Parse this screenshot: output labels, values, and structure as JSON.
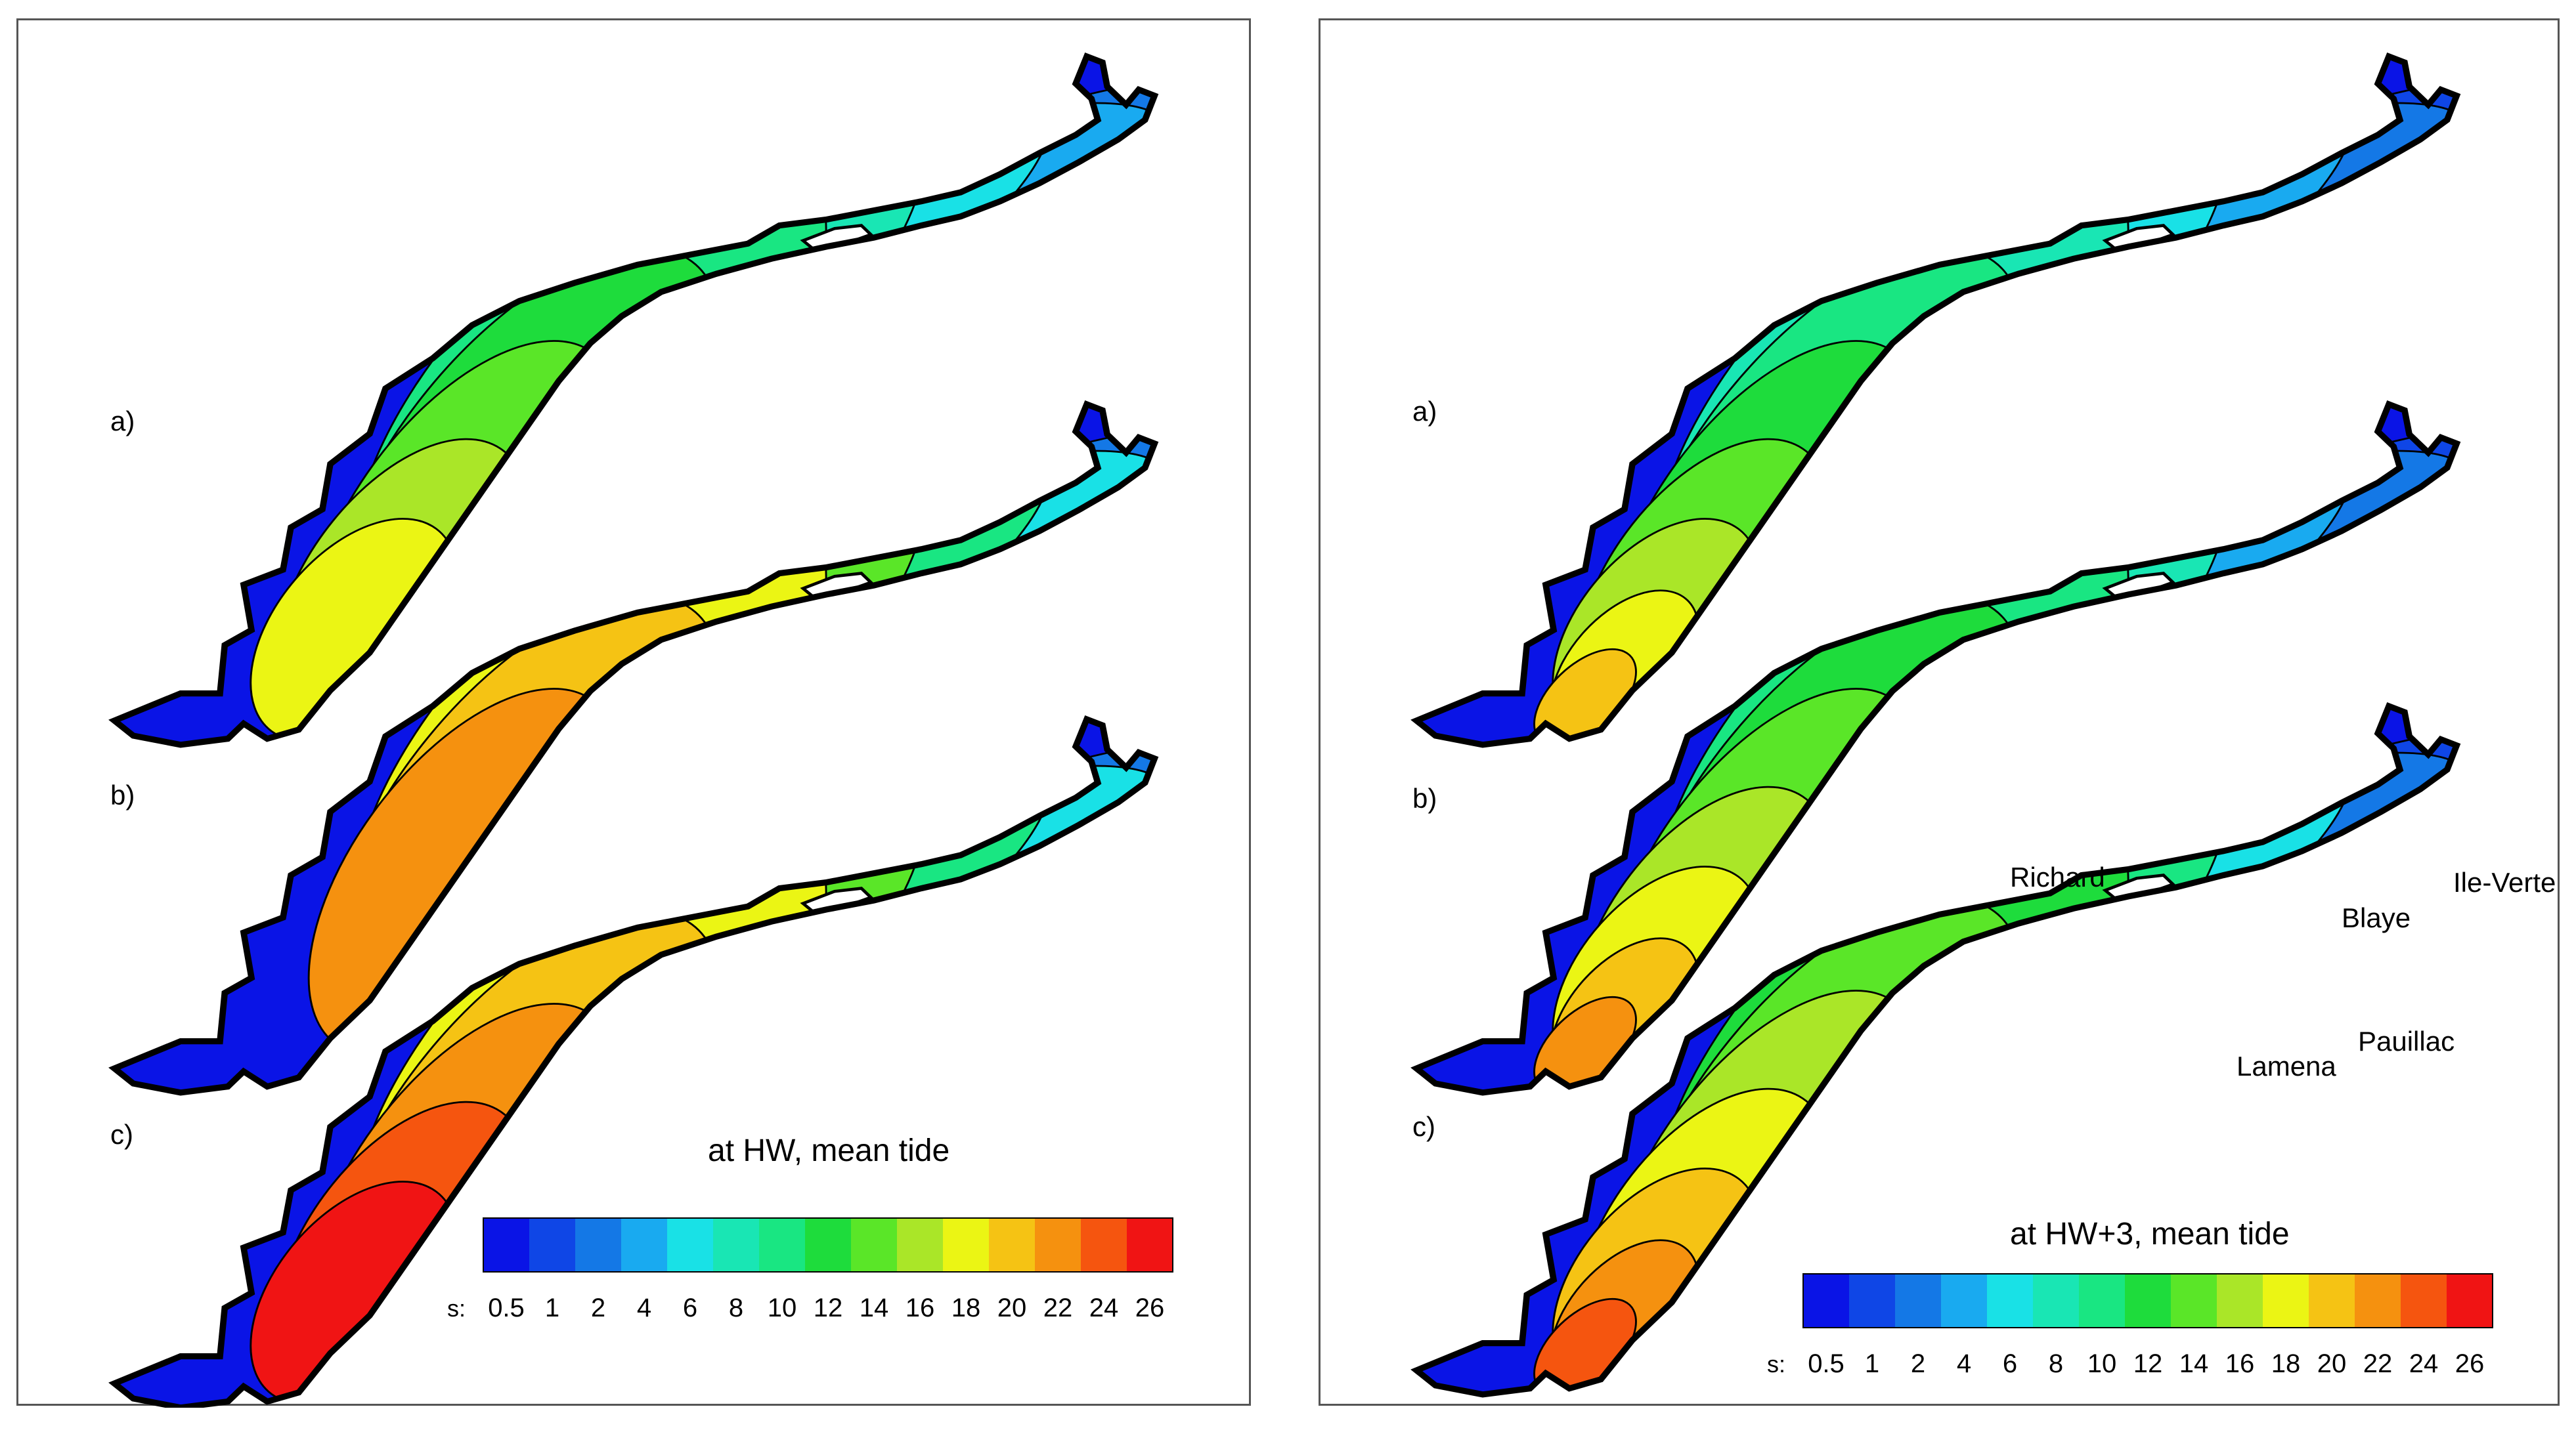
{
  "figures": [
    {
      "id": "left",
      "title": "at HW, mean tide",
      "panel_labels": [
        "a)",
        "b)",
        "c)"
      ],
      "panel_levels": [
        [
          18,
          16,
          14,
          12,
          10,
          8,
          6,
          4,
          2
        ],
        [
          22,
          20,
          18,
          14,
          10,
          6,
          2
        ],
        [
          26,
          24,
          22,
          20,
          18,
          14,
          10,
          6,
          2
        ]
      ],
      "place_names": []
    },
    {
      "id": "right",
      "title": "at HW+3, mean tide",
      "panel_labels": [
        "a)",
        "b)",
        "c)"
      ],
      "panel_levels": [
        [
          20,
          18,
          16,
          14,
          12,
          10,
          8,
          6,
          4,
          2,
          1
        ],
        [
          22,
          20,
          18,
          16,
          14,
          12,
          10,
          8,
          4,
          2,
          1
        ],
        [
          24,
          22,
          20,
          18,
          16,
          14,
          12,
          10,
          6,
          2,
          1
        ]
      ],
      "place_names": [
        "Richard",
        "Lamena",
        "Pauillac",
        "Blaye",
        "Ile-Verte"
      ]
    }
  ],
  "legend": {
    "variable": "s:",
    "ticks": [
      "0.5",
      "1",
      "2",
      "4",
      "6",
      "8",
      "10",
      "12",
      "14",
      "16",
      "18",
      "20",
      "22",
      "24",
      "26"
    ],
    "colors": [
      "#0a14e6",
      "#0f46e6",
      "#1478e6",
      "#19aaf0",
      "#19e1e6",
      "#19e6b4",
      "#19e682",
      "#1edc3c",
      "#5ae628",
      "#aae628",
      "#ebf514",
      "#f5c314",
      "#f5910f",
      "#f5550f",
      "#f01414"
    ]
  },
  "colors": {
    "background": "#ffffff",
    "panel_border": "#555555",
    "estuary_outline": "#000000",
    "island": "#ffffff"
  }
}
